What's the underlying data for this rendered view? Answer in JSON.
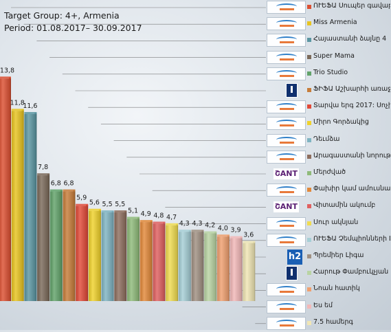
{
  "chart_data": {
    "type": "bar",
    "title": "Target Group: 4+, Armenia",
    "subtitle": "Period: 01.08.2017– 30.09.2017",
    "categories": [
      "ՈՒԵՖԱ Սուպեր գավաթ",
      "Miss Armenia",
      "Հայաստանի ձայնը 4",
      "Super Mama",
      "Trio Studio",
      "ՖԻՖԱ Աշխարհի առաջնություն",
      "Տարվա երգ 2017: Սոչի",
      "Միրո Գորձակից",
      "Դեւմձա",
      "Արագաստանի նորություններ",
      "Մերժված",
      "Փախիր կամ ամուսնացիր",
      "Վիտամին ակումբ",
      "Սուր ակնյան",
      "ՈՒԵՖԱ Չեմպիոնների Լիգա",
      "Պրեմիեր Լիգա",
      "Հարութ Փամբուկչյան - Իմ երգը",
      "Նոան հատիկ",
      "Ես եմ",
      "7.5 համերգ"
    ],
    "values": [
      13.8,
      11.8,
      11.6,
      7.8,
      6.8,
      6.8,
      5.9,
      5.6,
      5.5,
      5.5,
      5.1,
      4.9,
      4.8,
      4.7,
      4.3,
      4.3,
      4.2,
      4.0,
      3.9,
      3.6
    ],
    "value_labels": [
      "13,8",
      "11,8",
      "11,6",
      "7,8",
      "6,8",
      "6,8",
      "5,9",
      "5,6",
      "5,5",
      "5,5",
      "5,1",
      "4,9",
      "4,8",
      "4,7",
      "4,3",
      "4,3",
      "4,2",
      "4,0",
      "3,9",
      "3,6"
    ],
    "colors": [
      "#dc5032",
      "#e8c420",
      "#5b96a2",
      "#7b6a5a",
      "#62a36a",
      "#c77d3a",
      "#e24a38",
      "#f0d22c",
      "#7fb4c2",
      "#8e6e5e",
      "#8fbb7a",
      "#e2893a",
      "#e06060",
      "#f0dc50",
      "#a6cfd6",
      "#a09082",
      "#b9d4a3",
      "#f0a070",
      "#f2b8b8",
      "#f0e6b4"
    ],
    "channels": [
      "sharm",
      "sharm",
      "sharm",
      "sharm",
      "sharm",
      "h1",
      "sharm",
      "sharm",
      "sharm",
      "sharm",
      "shant",
      "sharm",
      "shant",
      "sharm",
      "sharm",
      "h2",
      "h1",
      "sharm",
      "sharm",
      "sharm"
    ],
    "ylim": [
      0,
      14
    ],
    "legend_position": "right",
    "grid": false
  }
}
